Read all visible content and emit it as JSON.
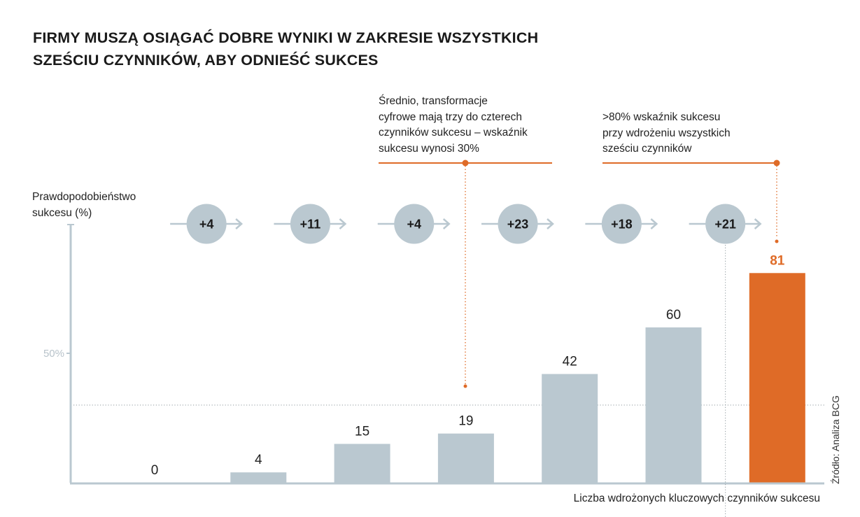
{
  "title": {
    "line1": "FIRMY MUSZĄ OSIĄGAĆ DOBRE WYNIKI W ZAKRESIE WSZYSTKICH",
    "line2": "SZEŚCIU CZYNNIKÓW, ABY ODNIEŚĆ SUKCES"
  },
  "notes": {
    "average": [
      "Średnio, transformacje",
      "cyfrowe mają trzy do czterech",
      "czynników sukcesu – wskaźnik",
      "sukcesu wynosi 30%"
    ],
    "all_six": [
      ">80% wskaźnik sukcesu",
      "przy wdrożeniu wszystkich",
      "sześciu czynników"
    ]
  },
  "source": "Źródło: Analiza BCG",
  "colors": {
    "bar": "#bac8d0",
    "highlight": "#df6b27",
    "axis": "#bac8d0",
    "increment_circle": "#bac8d0"
  },
  "chart_data": {
    "type": "bar",
    "ylabel": [
      "Prawdopodobieństwo",
      "sukcesu (%)"
    ],
    "xlabel": "Liczba wdrożonych kluczowych czynników sukcesu",
    "ylim": [
      0,
      100
    ],
    "y_ticks": [
      {
        "value": 50,
        "label": "50%"
      }
    ],
    "reference_line": 30,
    "values": [
      0,
      4,
      15,
      19,
      42,
      60,
      81
    ],
    "value_labels": [
      "0",
      "4",
      "15",
      "19",
      "42",
      "60",
      "81"
    ],
    "highlight_index": 6,
    "increments": [
      "+4",
      "+11",
      "+4",
      "+23",
      "+18",
      "+21"
    ],
    "grid": false
  }
}
